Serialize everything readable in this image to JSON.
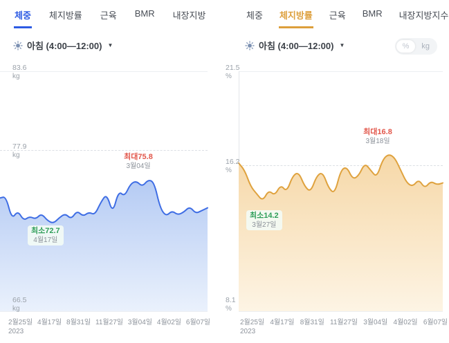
{
  "panels": [
    {
      "title": "체중",
      "accent_color": "#2d5be3",
      "tabs": [
        {
          "label": "체중",
          "active": true
        },
        {
          "label": "체지방률",
          "active": false
        },
        {
          "label": "근육",
          "active": false
        },
        {
          "label": "BMR",
          "active": false
        },
        {
          "label": "내장지방",
          "active": false
        }
      ],
      "period": "아침 (4:00—12:00)",
      "y_axis": [
        {
          "value": "83.6",
          "unit": "kg"
        },
        {
          "value": "77.9",
          "unit": "kg"
        },
        {
          "value": "66.5",
          "unit": "kg"
        }
      ],
      "max_badge": {
        "label": "최대75.8",
        "date": "3월04일"
      },
      "min_badge": {
        "label": "최소72.7",
        "date": "4월17일"
      },
      "x_axis": [
        "2월25일",
        "4월17일",
        "8월31일",
        "11월27일",
        "3월04일",
        "4월02일",
        "6월07일"
      ],
      "x_axis_year": "2023"
    },
    {
      "title": "체지방률",
      "accent_color": "#dd9f3b",
      "tabs": [
        {
          "label": "체중",
          "active": false
        },
        {
          "label": "체지방률",
          "active": true
        },
        {
          "label": "근육",
          "active": false
        },
        {
          "label": "BMR",
          "active": false
        },
        {
          "label": "내장지방지수",
          "active": false
        }
      ],
      "period": "아침 (4:00—12:00)",
      "unit_toggle": {
        "options": [
          "%",
          "kg"
        ],
        "selected": "%"
      },
      "y_axis": [
        {
          "value": "21.5",
          "unit": "%"
        },
        {
          "value": "16.2",
          "unit": "%"
        },
        {
          "value": "8.1",
          "unit": "%"
        }
      ],
      "max_badge": {
        "label": "최대16.8",
        "date": "3월18일"
      },
      "min_badge": {
        "label": "최소14.2",
        "date": "3월27일"
      },
      "x_axis": [
        "2월25일",
        "4월17일",
        "8월31일",
        "11월27일",
        "3월04일",
        "4월02일",
        "6월07일"
      ],
      "x_axis_year": "2023"
    }
  ],
  "status_colors": {
    "max": "#e2574b",
    "min": "#2f9e58"
  },
  "chart_data": [
    {
      "type": "area",
      "title": "체중 아침 (4:00—12:00)",
      "ylabel": "kg",
      "ylim": [
        66.5,
        83.6
      ],
      "gridlines": [
        83.6,
        77.9,
        66.5
      ],
      "x_ticks": [
        "2월25일 2023",
        "4월17일",
        "8월31일",
        "11월27일",
        "3월04일",
        "4월02일",
        "6월07일"
      ],
      "max": {
        "value": 75.8,
        "date": "3월04일"
      },
      "min": {
        "value": 72.7,
        "date": "4월17일"
      },
      "line_color": "#3e6de4",
      "fill_top": "#b5cbf4",
      "fill_bottom": "#eaf1fc",
      "series": [
        {
          "name": "체중",
          "values": [
            74.5,
            74.6,
            73.0,
            73.6,
            72.9,
            73.2,
            73.0,
            73.4,
            72.9,
            72.7,
            73.1,
            73.4,
            73.0,
            73.6,
            73.2,
            73.5,
            73.3,
            74.2,
            74.8,
            73.4,
            75.0,
            74.6,
            75.5,
            75.7,
            75.3,
            75.8,
            75.6,
            73.8,
            73.2,
            73.6,
            73.3,
            73.5,
            73.9,
            73.4,
            73.6,
            73.8
          ]
        }
      ]
    },
    {
      "type": "area",
      "title": "체지방률 아침 (4:00—12:00)",
      "ylabel": "%",
      "ylim": [
        8.1,
        21.5
      ],
      "gridlines": [
        21.5,
        16.2,
        8.1
      ],
      "x_ticks": [
        "2월25일 2023",
        "4월17일",
        "8월31일",
        "11월27일",
        "3월04일",
        "4월02일",
        "6월07일"
      ],
      "max": {
        "value": 16.8,
        "date": "3월18일"
      },
      "min": {
        "value": 14.2,
        "date": "3월27일"
      },
      "line_color": "#dfa23e",
      "fill_top": "#f6d8a8",
      "fill_bottom": "#fdf4e4",
      "series": [
        {
          "name": "체지방률",
          "values": [
            16.3,
            15.9,
            15.0,
            14.6,
            14.2,
            14.8,
            14.5,
            15.1,
            14.7,
            15.6,
            15.8,
            15.0,
            14.7,
            15.6,
            15.8,
            14.9,
            14.6,
            15.9,
            16.1,
            15.4,
            15.6,
            16.3,
            15.9,
            15.5,
            16.5,
            16.8,
            16.6,
            15.9,
            15.2,
            15.0,
            15.4,
            14.9,
            15.3,
            15.1,
            15.2
          ]
        }
      ]
    }
  ]
}
